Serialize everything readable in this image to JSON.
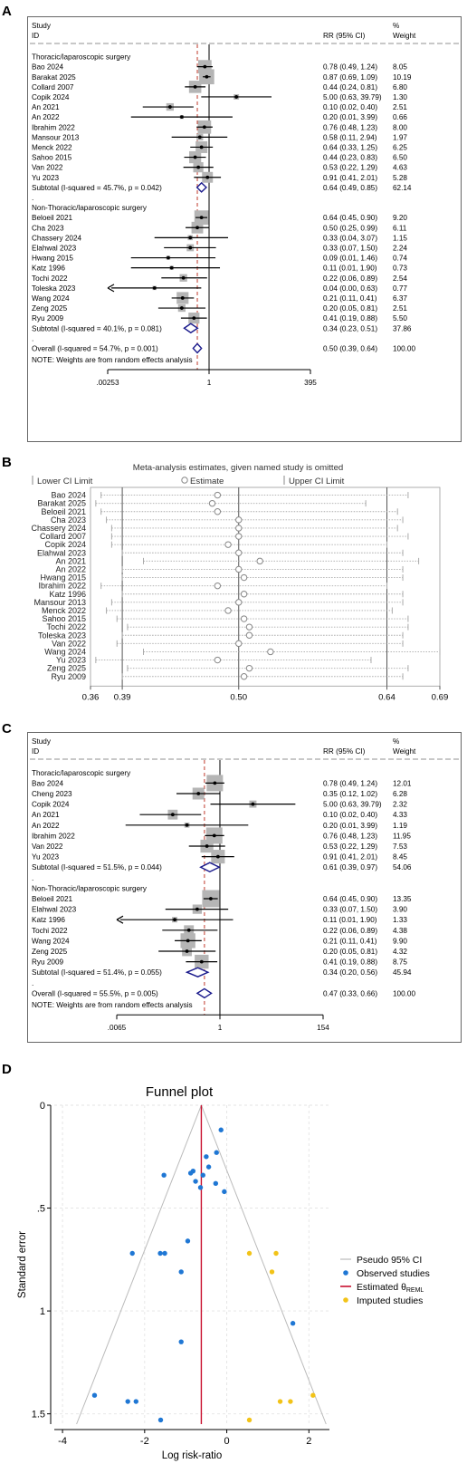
{
  "chart_data": [
    {
      "panel": "A",
      "type": "forest",
      "header": {
        "study": "Study",
        "id": "ID",
        "effect": "RR (95% CI)",
        "pct": "%",
        "weight": "Weight"
      },
      "axis_ticks": [
        {
          "label": ".00253",
          "value": 0.00253
        },
        {
          "label": "1",
          "value": 1
        },
        {
          "label": "395",
          "value": 395
        }
      ],
      "overall_rr": 0.5,
      "note": "NOTE: Weights are from random effects analysis",
      "rows": [
        {
          "kind": "group",
          "label": "Thoracic/laparoscopic surgery"
        },
        {
          "kind": "study",
          "label": "Bao 2024",
          "rr": 0.78,
          "lo": 0.49,
          "hi": 1.24,
          "ci": "0.78 (0.49, 1.24)",
          "weight": "8.05"
        },
        {
          "kind": "study",
          "label": "Barakat 2025",
          "rr": 0.87,
          "lo": 0.69,
          "hi": 1.09,
          "ci": "0.87 (0.69, 1.09)",
          "weight": "10.19"
        },
        {
          "kind": "study",
          "label": "Collard 2007",
          "rr": 0.44,
          "lo": 0.24,
          "hi": 0.81,
          "ci": "0.44 (0.24, 0.81)",
          "weight": "6.80"
        },
        {
          "kind": "study",
          "label": "Copik 2024",
          "rr": 5.0,
          "lo": 0.63,
          "hi": 39.79,
          "ci": "5.00 (0.63, 39.79)",
          "weight": "1.30"
        },
        {
          "kind": "study",
          "label": "An 2021",
          "rr": 0.1,
          "lo": 0.02,
          "hi": 0.4,
          "ci": "0.10 (0.02, 0.40)",
          "weight": "2.51"
        },
        {
          "kind": "study",
          "label": "An 2022",
          "rr": 0.2,
          "lo": 0.01,
          "hi": 3.99,
          "ci": "0.20 (0.01, 3.99)",
          "weight": "0.66"
        },
        {
          "kind": "study",
          "label": "Ibrahim 2022",
          "rr": 0.76,
          "lo": 0.48,
          "hi": 1.23,
          "ci": "0.76 (0.48, 1.23)",
          "weight": "8.00"
        },
        {
          "kind": "study",
          "label": "Mansour 2013",
          "rr": 0.58,
          "lo": 0.11,
          "hi": 2.94,
          "ci": "0.58 (0.11, 2.94)",
          "weight": "1.97"
        },
        {
          "kind": "study",
          "label": "Menck 2022",
          "rr": 0.64,
          "lo": 0.33,
          "hi": 1.25,
          "ci": "0.64 (0.33, 1.25)",
          "weight": "6.25"
        },
        {
          "kind": "study",
          "label": "Sahoo 2015",
          "rr": 0.44,
          "lo": 0.23,
          "hi": 0.83,
          "ci": "0.44 (0.23, 0.83)",
          "weight": "6.50"
        },
        {
          "kind": "study",
          "label": "Van 2022",
          "rr": 0.53,
          "lo": 0.22,
          "hi": 1.29,
          "ci": "0.53 (0.22, 1.29)",
          "weight": "4.63"
        },
        {
          "kind": "study",
          "label": "Yu 2023",
          "rr": 0.91,
          "lo": 0.41,
          "hi": 2.01,
          "ci": "0.91 (0.41, 2.01)",
          "weight": "5.28"
        },
        {
          "kind": "subtotal",
          "label": "Subtotal  (I-squared = 45.7%, p = 0.042)",
          "rr": 0.64,
          "lo": 0.49,
          "hi": 0.85,
          "ci": "0.64 (0.49, 0.85)",
          "weight": "62.14"
        },
        {
          "kind": "dot",
          "label": "."
        },
        {
          "kind": "group",
          "label": "Non-Thoracic/laparoscopic surgery"
        },
        {
          "kind": "study",
          "label": "Beloeil 2021",
          "rr": 0.64,
          "lo": 0.45,
          "hi": 0.9,
          "ci": "0.64 (0.45, 0.90)",
          "weight": "9.20"
        },
        {
          "kind": "study",
          "label": "Cha 2023",
          "rr": 0.5,
          "lo": 0.25,
          "hi": 0.99,
          "ci": "0.50 (0.25, 0.99)",
          "weight": "6.11"
        },
        {
          "kind": "study",
          "label": "Chassery 2024",
          "rr": 0.33,
          "lo": 0.04,
          "hi": 3.07,
          "ci": "0.33 (0.04, 3.07)",
          "weight": "1.15"
        },
        {
          "kind": "study",
          "label": "Elahwal 2023",
          "rr": 0.33,
          "lo": 0.07,
          "hi": 1.5,
          "ci": "0.33 (0.07, 1.50)",
          "weight": "2.24"
        },
        {
          "kind": "study",
          "label": "Hwang 2015",
          "rr": 0.09,
          "lo": 0.01,
          "hi": 1.46,
          "ci": "0.09 (0.01, 1.46)",
          "weight": "0.74"
        },
        {
          "kind": "study",
          "label": "Katz 1996",
          "rr": 0.11,
          "lo": 0.01,
          "hi": 1.9,
          "ci": "0.11 (0.01, 1.90)",
          "weight": "0.73"
        },
        {
          "kind": "study",
          "label": "Tochi 2022",
          "rr": 0.22,
          "lo": 0.06,
          "hi": 0.89,
          "ci": "0.22 (0.06, 0.89)",
          "weight": "2.54"
        },
        {
          "kind": "study",
          "label": "Toleska 2023",
          "rr": 0.04,
          "lo": 0.0,
          "hi": 0.63,
          "ci": "0.04 (0.00, 0.63)",
          "weight": "0.77",
          "arrow": true
        },
        {
          "kind": "study",
          "label": "Wang 2024",
          "rr": 0.21,
          "lo": 0.11,
          "hi": 0.41,
          "ci": "0.21 (0.11, 0.41)",
          "weight": "6.37"
        },
        {
          "kind": "study",
          "label": "Zeng 2025",
          "rr": 0.2,
          "lo": 0.05,
          "hi": 0.81,
          "ci": "0.20 (0.05, 0.81)",
          "weight": "2.51"
        },
        {
          "kind": "study",
          "label": "Ryu 2009",
          "rr": 0.41,
          "lo": 0.19,
          "hi": 0.88,
          "ci": "0.41 (0.19, 0.88)",
          "weight": "5.50"
        },
        {
          "kind": "subtotal",
          "label": "Subtotal  (I-squared = 40.1%, p = 0.081)",
          "rr": 0.34,
          "lo": 0.23,
          "hi": 0.51,
          "ci": "0.34 (0.23, 0.51)",
          "weight": "37.86"
        },
        {
          "kind": "dot",
          "label": "."
        },
        {
          "kind": "subtotal",
          "label": "Overall  (I-squared = 54.7%, p = 0.001)",
          "rr": 0.5,
          "lo": 0.39,
          "hi": 0.64,
          "ci": "0.50 (0.39, 0.64)",
          "weight": "100.00"
        }
      ]
    },
    {
      "panel": "B",
      "type": "sensitivity",
      "title": "Meta-analysis estimates, given named study is omitted",
      "legend": [
        "Lower CI Limit",
        "Estimate",
        "Upper CI Limit"
      ],
      "xlim": [
        0.36,
        0.69
      ],
      "ref_lines": [
        0.39,
        0.5,
        0.64
      ],
      "ticks": [
        "0.36",
        "0.39",
        "0.50",
        "0.64",
        "0.69"
      ],
      "rows": [
        {
          "label": "Bao 2024",
          "lo": 0.37,
          "est": 0.48,
          "hi": 0.66
        },
        {
          "label": "Barakat 2025",
          "lo": 0.365,
          "est": 0.475,
          "hi": 0.62
        },
        {
          "label": "Beloeil 2021",
          "lo": 0.37,
          "est": 0.48,
          "hi": 0.65
        },
        {
          "label": "Cha 2023",
          "lo": 0.375,
          "est": 0.5,
          "hi": 0.655
        },
        {
          "label": "Chassery 2024",
          "lo": 0.38,
          "est": 0.5,
          "hi": 0.65
        },
        {
          "label": "Collard 2007",
          "lo": 0.38,
          "est": 0.5,
          "hi": 0.66
        },
        {
          "label": "Copik 2024",
          "lo": 0.38,
          "est": 0.49,
          "hi": 0.64
        },
        {
          "label": "Elahwal 2023",
          "lo": 0.39,
          "est": 0.5,
          "hi": 0.655
        },
        {
          "label": "An 2021",
          "lo": 0.41,
          "est": 0.52,
          "hi": 0.67
        },
        {
          "label": "An 2022",
          "lo": 0.39,
          "est": 0.5,
          "hi": 0.655
        },
        {
          "label": "Hwang 2015",
          "lo": 0.39,
          "est": 0.505,
          "hi": 0.655
        },
        {
          "label": "Ibrahim 2022",
          "lo": 0.37,
          "est": 0.48,
          "hi": 0.64
        },
        {
          "label": "Katz 1996",
          "lo": 0.39,
          "est": 0.505,
          "hi": 0.655
        },
        {
          "label": "Mansour 2013",
          "lo": 0.38,
          "est": 0.5,
          "hi": 0.655
        },
        {
          "label": "Menck 2022",
          "lo": 0.375,
          "est": 0.49,
          "hi": 0.645
        },
        {
          "label": "Sahoo 2015",
          "lo": 0.385,
          "est": 0.505,
          "hi": 0.66
        },
        {
          "label": "Tochi 2022",
          "lo": 0.395,
          "est": 0.51,
          "hi": 0.66
        },
        {
          "label": "Toleska 2023",
          "lo": 0.39,
          "est": 0.51,
          "hi": 0.655
        },
        {
          "label": "Van 2022",
          "lo": 0.385,
          "est": 0.5,
          "hi": 0.655
        },
        {
          "label": "Wang 2024",
          "lo": 0.41,
          "est": 0.53,
          "hi": 0.69
        },
        {
          "label": "Yu 2023",
          "lo": 0.365,
          "est": 0.48,
          "hi": 0.625
        },
        {
          "label": "Zeng 2025",
          "lo": 0.395,
          "est": 0.51,
          "hi": 0.66
        },
        {
          "label": "Ryu 2009",
          "lo": 0.39,
          "est": 0.505,
          "hi": 0.655
        }
      ]
    },
    {
      "panel": "C",
      "type": "forest",
      "header": {
        "study": "Study",
        "id": "ID",
        "effect": "RR (95% CI)",
        "pct": "%",
        "weight": "Weight"
      },
      "axis_ticks": [
        {
          "label": ".0065",
          "value": 0.0065
        },
        {
          "label": "1",
          "value": 1
        },
        {
          "label": "154",
          "value": 154
        }
      ],
      "overall_rr": 0.47,
      "note": "NOTE: Weights are from random effects analysis",
      "rows": [
        {
          "kind": "group",
          "label": "Thoracic/laparoscopic surgery"
        },
        {
          "kind": "study",
          "label": "Bao 2024",
          "rr": 0.78,
          "lo": 0.49,
          "hi": 1.24,
          "ci": "0.78 (0.49, 1.24)",
          "weight": "12.01"
        },
        {
          "kind": "study",
          "label": "Cheng 2023",
          "rr": 0.35,
          "lo": 0.12,
          "hi": 1.02,
          "ci": "0.35 (0.12, 1.02)",
          "weight": "6.28"
        },
        {
          "kind": "study",
          "label": "Copik 2024",
          "rr": 5.0,
          "lo": 0.63,
          "hi": 39.79,
          "ci": "5.00 (0.63, 39.79)",
          "weight": "2.32"
        },
        {
          "kind": "study",
          "label": "An 2021",
          "rr": 0.1,
          "lo": 0.02,
          "hi": 0.4,
          "ci": "0.10 (0.02, 0.40)",
          "weight": "4.33"
        },
        {
          "kind": "study",
          "label": "An 2022",
          "rr": 0.2,
          "lo": 0.01,
          "hi": 3.99,
          "ci": "0.20 (0.01, 3.99)",
          "weight": "1.19"
        },
        {
          "kind": "study",
          "label": "Ibrahim 2022",
          "rr": 0.76,
          "lo": 0.48,
          "hi": 1.23,
          "ci": "0.76 (0.48, 1.23)",
          "weight": "11.95"
        },
        {
          "kind": "study",
          "label": "Van 2022",
          "rr": 0.53,
          "lo": 0.22,
          "hi": 1.29,
          "ci": "0.53 (0.22, 1.29)",
          "weight": "7.53"
        },
        {
          "kind": "study",
          "label": "Yu 2023",
          "rr": 0.91,
          "lo": 0.41,
          "hi": 2.01,
          "ci": "0.91 (0.41, 2.01)",
          "weight": "8.45"
        },
        {
          "kind": "subtotal",
          "label": "Subtotal  (I-squared = 51.5%, p = 0.044)",
          "rr": 0.61,
          "lo": 0.39,
          "hi": 0.97,
          "ci": "0.61 (0.39, 0.97)",
          "weight": "54.06"
        },
        {
          "kind": "dot",
          "label": "."
        },
        {
          "kind": "group",
          "label": "Non-Thoracic/laparoscopic surgery"
        },
        {
          "kind": "study",
          "label": "Beloeil 2021",
          "rr": 0.64,
          "lo": 0.45,
          "hi": 0.9,
          "ci": "0.64 (0.45, 0.90)",
          "weight": "13.35"
        },
        {
          "kind": "study",
          "label": "Elahwal 2023",
          "rr": 0.33,
          "lo": 0.07,
          "hi": 1.5,
          "ci": "0.33 (0.07, 1.50)",
          "weight": "3.90"
        },
        {
          "kind": "study",
          "label": "Katz 1996",
          "rr": 0.11,
          "lo": 0.01,
          "hi": 1.9,
          "ci": "0.11 (0.01, 1.90)",
          "weight": "1.33",
          "arrow": true
        },
        {
          "kind": "study",
          "label": "Tochi 2022",
          "rr": 0.22,
          "lo": 0.06,
          "hi": 0.89,
          "ci": "0.22 (0.06, 0.89)",
          "weight": "4.38"
        },
        {
          "kind": "study",
          "label": "Wang 2024",
          "rr": 0.21,
          "lo": 0.11,
          "hi": 0.41,
          "ci": "0.21 (0.11, 0.41)",
          "weight": "9.90"
        },
        {
          "kind": "study",
          "label": "Zeng 2025",
          "rr": 0.2,
          "lo": 0.05,
          "hi": 0.81,
          "ci": "0.20 (0.05, 0.81)",
          "weight": "4.32"
        },
        {
          "kind": "study",
          "label": "Ryu 2009",
          "rr": 0.41,
          "lo": 0.19,
          "hi": 0.88,
          "ci": "0.41 (0.19, 0.88)",
          "weight": "8.75"
        },
        {
          "kind": "subtotal",
          "label": "Subtotal  (I-squared = 51.4%, p = 0.055)",
          "rr": 0.34,
          "lo": 0.2,
          "hi": 0.56,
          "ci": "0.34 (0.20, 0.56)",
          "weight": "45.94"
        },
        {
          "kind": "dot",
          "label": "."
        },
        {
          "kind": "subtotal",
          "label": "Overall  (I-squared = 55.5%, p = 0.005)",
          "rr": 0.47,
          "lo": 0.33,
          "hi": 0.66,
          "ci": "0.47 (0.33, 0.66)",
          "weight": "100.00"
        }
      ]
    },
    {
      "panel": "D",
      "type": "scatter",
      "title": "Funnel plot",
      "xlabel": "Log risk-ratio",
      "ylabel": "Standard error",
      "xlim": [
        -4.2,
        2.5
      ],
      "ylim": [
        0,
        1.55
      ],
      "xticks": [
        -4,
        -2,
        0,
        2
      ],
      "yticks": [
        {
          "label": "0",
          "value": 0
        },
        {
          "label": ".5",
          "value": 0.5
        },
        {
          "label": "1",
          "value": 1
        },
        {
          "label": "1.5",
          "value": 1.5
        }
      ],
      "estimated_theta": -0.62,
      "legend": [
        "Pseudo 95% CI",
        "Observed studies",
        "Estimated θ",
        "Imputed studies"
      ],
      "legend_sub": "REML",
      "colors": {
        "observed": "#1f77d4",
        "imputed": "#f2c318",
        "theta": "#c8102e",
        "ci": "#bbbbbb"
      },
      "observed": [
        {
          "x": -0.25,
          "y": 0.23
        },
        {
          "x": -0.14,
          "y": 0.12
        },
        {
          "x": -0.44,
          "y": 0.3
        },
        {
          "x": -0.5,
          "y": 0.25
        },
        {
          "x": -0.27,
          "y": 0.38
        },
        {
          "x": -0.64,
          "y": 0.4
        },
        {
          "x": -0.82,
          "y": 0.32
        },
        {
          "x": -0.76,
          "y": 0.37
        },
        {
          "x": -0.58,
          "y": 0.34
        },
        {
          "x": -0.88,
          "y": 0.33
        },
        {
          "x": -0.06,
          "y": 0.42
        },
        {
          "x": -1.53,
          "y": 0.34
        },
        {
          "x": 1.61,
          "y": 1.06
        },
        {
          "x": -0.95,
          "y": 0.66
        },
        {
          "x": -1.51,
          "y": 0.72
        },
        {
          "x": -1.11,
          "y": 0.81
        },
        {
          "x": -1.62,
          "y": 0.72
        },
        {
          "x": -2.3,
          "y": 0.72
        },
        {
          "x": -1.11,
          "y": 1.15
        },
        {
          "x": -3.22,
          "y": 1.41
        },
        {
          "x": -2.41,
          "y": 1.44
        },
        {
          "x": -2.21,
          "y": 1.44
        },
        {
          "x": -1.61,
          "y": 1.53
        }
      ],
      "imputed": [
        {
          "x": 0.55,
          "y": 0.72
        },
        {
          "x": 1.2,
          "y": 0.72
        },
        {
          "x": 1.1,
          "y": 0.81
        },
        {
          "x": 2.1,
          "y": 1.41
        },
        {
          "x": 1.3,
          "y": 1.44
        },
        {
          "x": 1.55,
          "y": 1.44
        },
        {
          "x": 0.55,
          "y": 1.53
        }
      ]
    }
  ]
}
